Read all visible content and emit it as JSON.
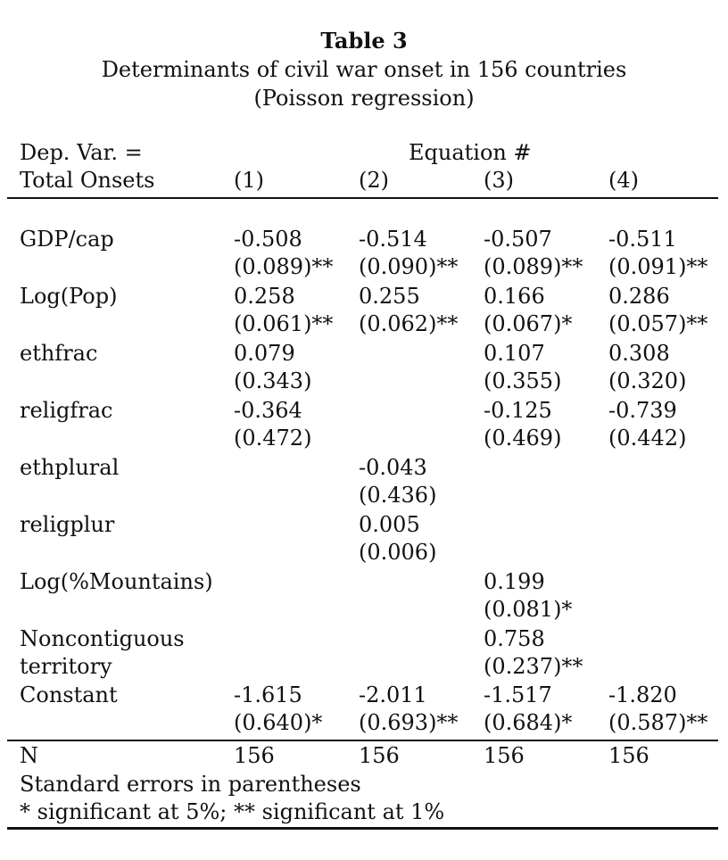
{
  "title": {
    "main": "Table 3",
    "line2": "Determinants of civil war onset in 156 countries",
    "line3": "(Poisson regression)"
  },
  "header": {
    "dep_line1": "Dep. Var. =",
    "dep_line2": "Total Onsets",
    "equation_label": "Equation #",
    "columns": [
      "(1)",
      "(2)",
      "(3)",
      "(4)"
    ]
  },
  "rows": [
    {
      "label": [
        "GDP/cap"
      ],
      "cells": [
        [
          "-0.508",
          "(0.089)**"
        ],
        [
          "-0.514",
          "(0.090)**"
        ],
        [
          "-0.507",
          "(0.089)**"
        ],
        [
          "-0.511",
          "(0.091)**"
        ]
      ]
    },
    {
      "label": [
        "Log(Pop)"
      ],
      "cells": [
        [
          "0.258",
          "(0.061)**"
        ],
        [
          "0.255",
          "(0.062)**"
        ],
        [
          "0.166",
          "(0.067)*"
        ],
        [
          "0.286",
          "(0.057)**"
        ]
      ]
    },
    {
      "label": [
        "ethfrac"
      ],
      "cells": [
        [
          "0.079",
          "(0.343)"
        ],
        [
          "",
          ""
        ],
        [
          "0.107",
          "(0.355)"
        ],
        [
          "0.308",
          "(0.320)"
        ]
      ]
    },
    {
      "label": [
        "religfrac"
      ],
      "cells": [
        [
          "-0.364",
          "(0.472)"
        ],
        [
          "",
          ""
        ],
        [
          "-0.125",
          "(0.469)"
        ],
        [
          "-0.739",
          "(0.442)"
        ]
      ]
    },
    {
      "label": [
        "ethplural"
      ],
      "cells": [
        [
          "",
          ""
        ],
        [
          "-0.043",
          "(0.436)"
        ],
        [
          "",
          ""
        ],
        [
          "",
          ""
        ]
      ]
    },
    {
      "label": [
        "religplur"
      ],
      "cells": [
        [
          "",
          ""
        ],
        [
          "0.005",
          "(0.006)"
        ],
        [
          "",
          ""
        ],
        [
          "",
          ""
        ]
      ]
    },
    {
      "label": [
        "Log(%Mountains)"
      ],
      "cells": [
        [
          "",
          ""
        ],
        [
          "",
          ""
        ],
        [
          "0.199",
          "(0.081)*"
        ],
        [
          "",
          ""
        ]
      ]
    },
    {
      "label": [
        "Noncontiguous",
        "territory"
      ],
      "cells": [
        [
          "",
          ""
        ],
        [
          "",
          ""
        ],
        [
          "0.758",
          "(0.237)**"
        ],
        [
          "",
          ""
        ]
      ]
    },
    {
      "label": [
        "Constant"
      ],
      "cells": [
        [
          "-1.615",
          "(0.640)*"
        ],
        [
          "-2.011",
          "(0.693)**"
        ],
        [
          "-1.517",
          "(0.684)*"
        ],
        [
          "-1.820",
          "(0.587)**"
        ]
      ]
    }
  ],
  "footer": {
    "n_label": "N",
    "n_values": [
      "156",
      "156",
      "156",
      "156"
    ],
    "note1": "Standard errors in parentheses",
    "note2": "* significant at 5%; ** significant at 1%"
  }
}
